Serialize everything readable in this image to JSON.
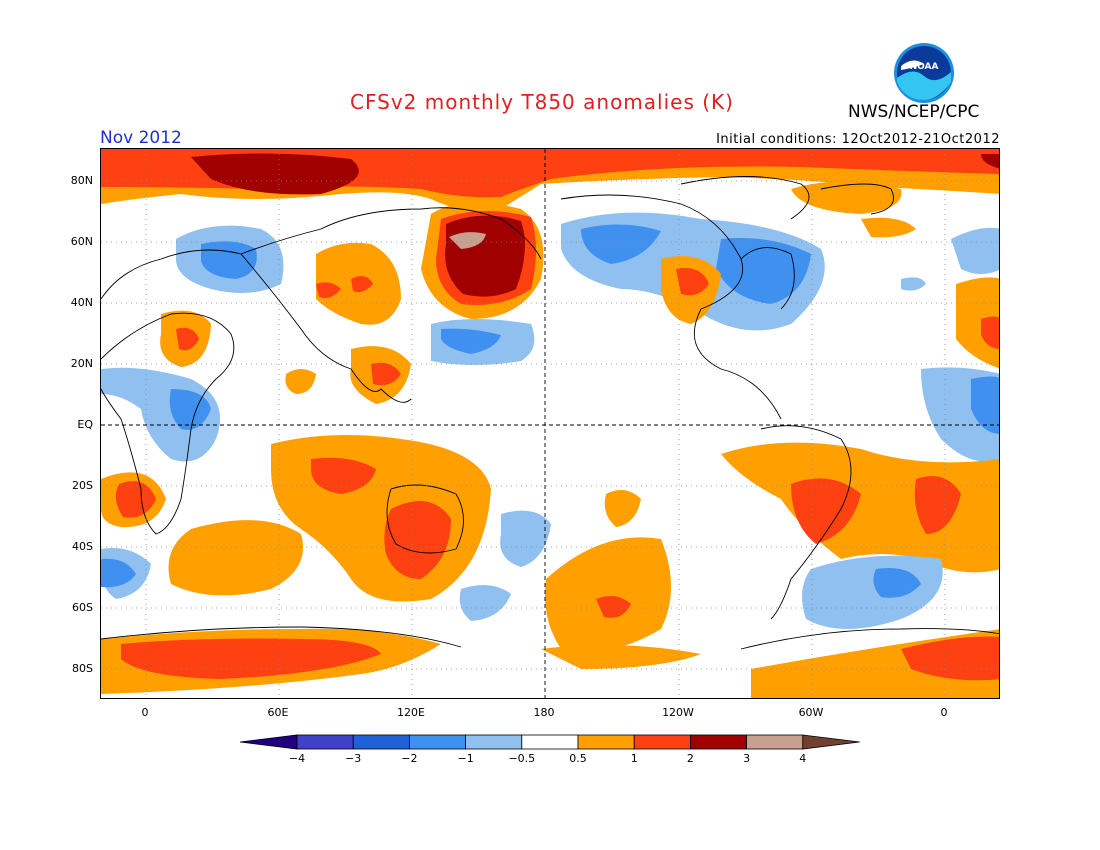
{
  "header": {
    "title": "CFSv2 monthly T850 anomalies (K)",
    "org": "NWS/NCEP/CPC",
    "month": "Nov 2012",
    "initial_conditions": "Initial conditions: 12Oct2012-21Oct2012",
    "logo_text": "NOAA"
  },
  "map": {
    "projection": "cylindrical equidistant",
    "lat_labels": [
      "80N",
      "60N",
      "40N",
      "20N",
      "EQ",
      "20S",
      "40S",
      "60S",
      "80S"
    ],
    "lon_labels": [
      "0",
      "60E",
      "120E",
      "180",
      "120W",
      "60W",
      "0"
    ],
    "grid": "dotted",
    "reference_lines": [
      "EQ",
      "180"
    ]
  },
  "colorbar": {
    "labels": [
      "-4",
      "-3",
      "-2",
      "-1",
      "-0.5",
      "0.5",
      "1",
      "2",
      "3",
      "4"
    ],
    "colors": [
      "#200080",
      "#4040c8",
      "#2060d8",
      "#4090f0",
      "#90c0f0",
      "#ffffff",
      "#ffa000",
      "#ff4010",
      "#a00000",
      "#c8a090",
      "#704030"
    ]
  }
}
